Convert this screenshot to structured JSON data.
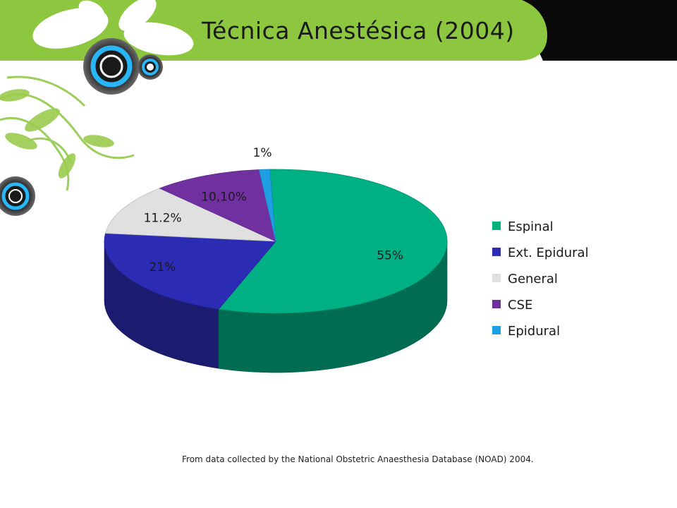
{
  "slide": {
    "title": "Técnica Anestésica (2004)",
    "source_note": "From data collected by the National Obstetric Anaesthesia Database (NOAD) 2004."
  },
  "colors": {
    "header_green": "#8DC63F",
    "header_black": "#0a0a0a",
    "Espinal": "#00B085",
    "Ext. Epidural": "#2B2BB3",
    "General": "#E0E0E0",
    "CSE": "#7030A0",
    "Epidural": "#1E9FE3"
  },
  "chart_data": {
    "type": "pie",
    "style": "3d",
    "title": "",
    "legend_position": "right",
    "slices": [
      {
        "name": "Espinal",
        "value": 55,
        "label": "55%"
      },
      {
        "name": "Ext. Epidural",
        "value": 21,
        "label": "21%"
      },
      {
        "name": "General",
        "value": 11.2,
        "label": "11.2%"
      },
      {
        "name": "CSE",
        "value": 10.1,
        "label": "10,10%"
      },
      {
        "name": "Epidural",
        "value": 1,
        "label": "1%"
      }
    ]
  }
}
